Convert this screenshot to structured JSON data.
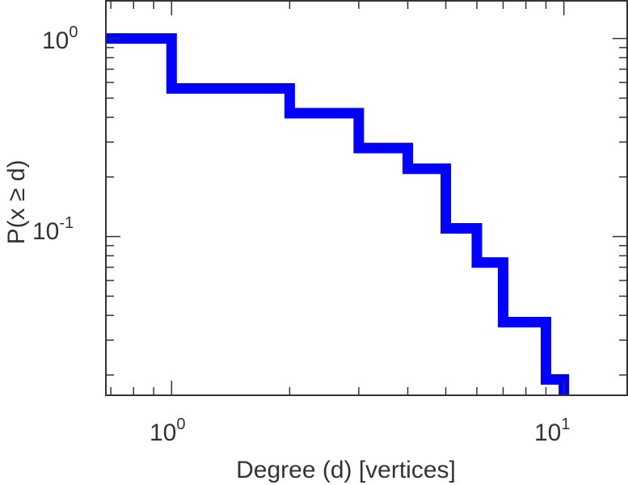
{
  "chart_data": {
    "type": "line",
    "title": "",
    "xlabel": "Degree (d) [vertices]",
    "ylabel": "P(x ≥ d)",
    "xscale": "log",
    "yscale": "log",
    "xlim": [
      0.68,
      14.5
    ],
    "ylim": [
      0.0158,
      1.55
    ],
    "grid": false,
    "step": "post",
    "series": [
      {
        "color": "#0000ff",
        "x": [
          0.68,
          1,
          2,
          3,
          4,
          5,
          6,
          7,
          9,
          10
        ],
        "y": [
          1.0,
          0.56,
          0.42,
          0.28,
          0.22,
          0.11,
          0.074,
          0.037,
          0.019,
          0.0158
        ]
      }
    ],
    "x_ticks": [
      {
        "base": "10",
        "exp": "0",
        "value": 1
      },
      {
        "base": "10",
        "exp": "1",
        "value": 10
      }
    ],
    "y_ticks": [
      {
        "base": "10",
        "exp": "0",
        "value": 1
      },
      {
        "base": "10",
        "exp": "-1",
        "value": 0.1
      }
    ]
  }
}
